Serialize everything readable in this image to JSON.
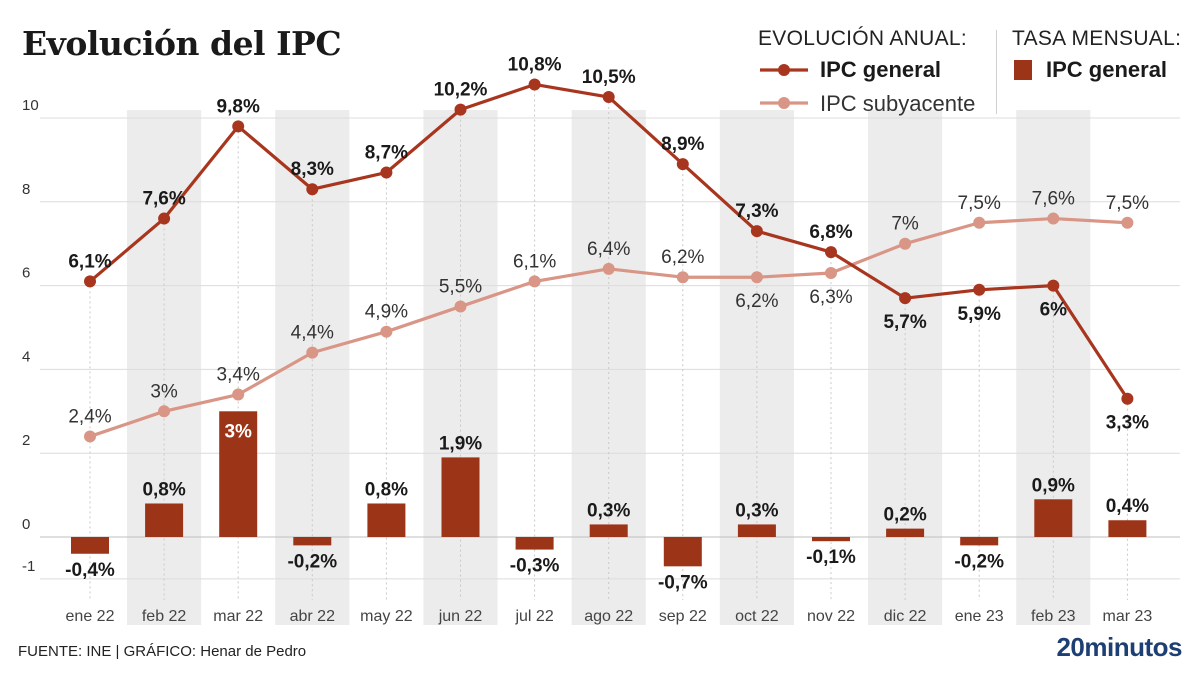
{
  "title": "Evolución del IPC",
  "legend": {
    "annual_heading": "EVOLUCIÓN ANUAL:",
    "monthly_heading": "TASA MENSUAL:",
    "general_label": "IPC general",
    "core_label": "IPC subyacente",
    "bar_label": "IPC general"
  },
  "footer": {
    "source": "FUENTE: INE  |  GRÁFICO: Henar de Pedro",
    "logo": "20minutos"
  },
  "colors": {
    "general": "#a8361f",
    "core": "#d99585",
    "bar": "#9c3418",
    "band": "#ececec",
    "grid": "#dcdcdc"
  },
  "chart_data": {
    "type": "line",
    "categories": [
      "ene 22",
      "feb 22",
      "mar 22",
      "abr 22",
      "may 22",
      "jun 22",
      "jul 22",
      "ago 22",
      "sep 22",
      "oct 22",
      "nov 22",
      "dic 22",
      "ene 23",
      "feb 23",
      "mar 23"
    ],
    "ylim": [
      -1.5,
      11
    ],
    "yticks": [
      -1,
      0,
      2,
      4,
      6,
      8,
      10
    ],
    "ytick_labels": [
      "-1",
      "0",
      "2",
      "4",
      "6",
      "8",
      "10"
    ],
    "grid": true,
    "series": [
      {
        "name": "IPC general",
        "kind": "line",
        "values": [
          6.1,
          7.6,
          9.8,
          8.3,
          8.7,
          10.2,
          10.8,
          10.5,
          8.9,
          7.3,
          6.8,
          5.7,
          5.9,
          6.0,
          3.3
        ],
        "labels": [
          "6,1%",
          "7,6%",
          "9,8%",
          "8,3%",
          "8,7%",
          "10,2%",
          "10,8%",
          "10,5%",
          "8,9%",
          "7,3%",
          "6,8%",
          "5,7%",
          "5,9%",
          "6%",
          "3,3%"
        ]
      },
      {
        "name": "IPC subyacente",
        "kind": "line",
        "values": [
          2.4,
          3.0,
          3.4,
          4.4,
          4.9,
          5.5,
          6.1,
          6.4,
          6.2,
          6.2,
          6.3,
          7.0,
          7.5,
          7.6,
          7.5
        ],
        "labels": [
          "2,4%",
          "3%",
          "3,4%",
          "4,4%",
          "4,9%",
          "5,5%",
          "6,1%",
          "6,4%",
          "6,2%",
          "6,2%",
          "6,3%",
          "7%",
          "7,5%",
          "7,6%",
          "7,5%"
        ]
      },
      {
        "name": "IPC general",
        "kind": "bar",
        "values": [
          -0.4,
          0.8,
          3.0,
          -0.2,
          0.8,
          1.9,
          -0.3,
          0.3,
          -0.7,
          0.3,
          -0.1,
          0.2,
          -0.2,
          0.9,
          0.4
        ],
        "labels": [
          "-0,4%",
          "0,8%",
          "3%",
          "-0,2%",
          "0,8%",
          "1,9%",
          "-0,3%",
          "0,3%",
          "-0,7%",
          "0,3%",
          "-0,1%",
          "0,2%",
          "-0,2%",
          "0,9%",
          "0,4%"
        ]
      }
    ]
  }
}
